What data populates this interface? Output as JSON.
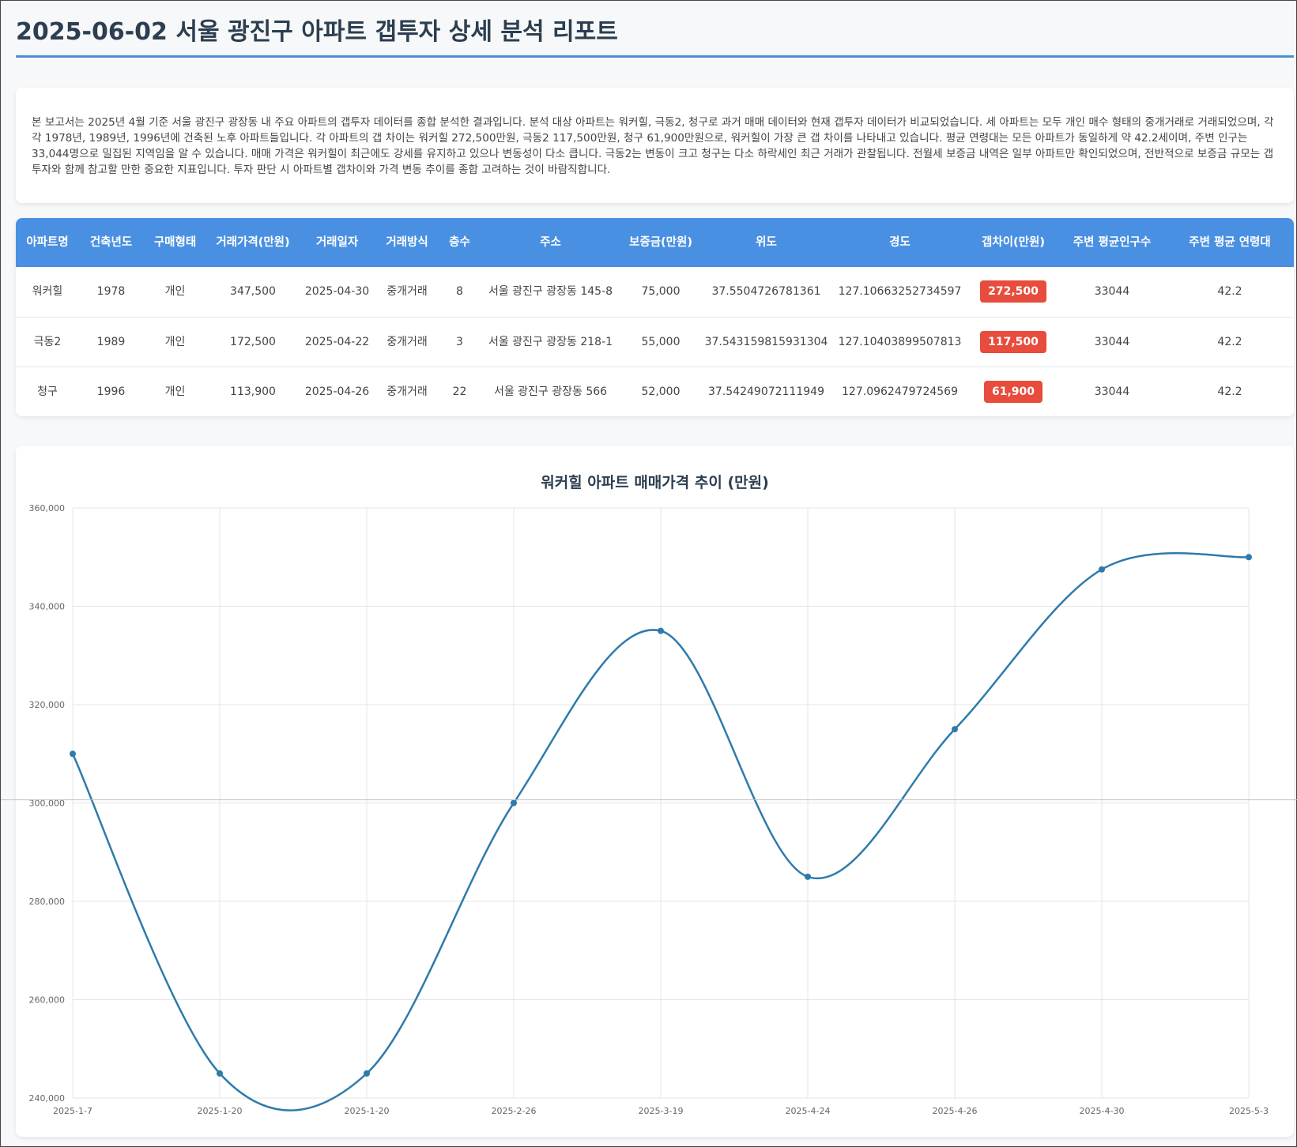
{
  "page": {
    "title": "2025-06-02 서울 광진구 아파트 갭투자 상세 분석 리포트"
  },
  "summary": {
    "text": "본 보고서는 2025년 4월 기준 서울 광진구 광장동 내 주요 아파트의 갭투자 데이터를 종합 분석한 결과입니다. 분석 대상 아파트는 워커힐, 극동2, 청구로 과거 매매 데이터와 현재 갭투자 데이터가 비교되었습니다. 세 아파트는 모두 개인 매수 형태의 중개거래로 거래되었으며, 각각 1978년, 1989년, 1996년에 건축된 노후 아파트들입니다. 각 아파트의 갭 차이는 워커힐 272,500만원, 극동2 117,500만원, 청구 61,900만원으로, 워커힐이 가장 큰 갭 차이를 나타내고 있습니다. 평균 연령대는 모든 아파트가 동일하게 약 42.2세이며, 주변 인구는 33,044명으로 밀집된 지역임을 알 수 있습니다. 매매 가격은 워커힐이 최근에도 강세를 유지하고 있으나 변동성이 다소 큽니다. 극동2는 변동이 크고 청구는 다소 하락세인 최근 거래가 관찰됩니다. 전월세 보증금 내역은 일부 아파트만 확인되었으며, 전반적으로 보증금 규모는 갭투자와 함께 참고할 만한 중요한 지표입니다. 투자 판단 시 아파트별 갭차이와 가격 변동 추이를 종합 고려하는 것이 바람직합니다."
  },
  "table": {
    "headers": [
      "아파트명",
      "건축년도",
      "구매형태",
      "거래가격(만원)",
      "거래일자",
      "거래방식",
      "층수",
      "주소",
      "보증금(만원)",
      "위도",
      "경도",
      "갭차이(만원)",
      "주변 평균인구수",
      "주변 평균 연령대"
    ],
    "rows": [
      [
        "워커힐",
        "1978",
        "개인",
        "347,500",
        "2025-04-30",
        "중개거래",
        "8",
        "서울 광진구 광장동 145-8",
        "75,000",
        "37.5504726781361",
        "127.10663252734597",
        "272,500",
        "33044",
        "42.2"
      ],
      [
        "극동2",
        "1989",
        "개인",
        "172,500",
        "2025-04-22",
        "중개거래",
        "3",
        "서울 광진구 광장동 218-1",
        "55,000",
        "37.543159815931304",
        "127.10403899507813",
        "117,500",
        "33044",
        "42.2"
      ],
      [
        "청구",
        "1996",
        "개인",
        "113,900",
        "2025-04-26",
        "중개거래",
        "22",
        "서울 광진구 광장동 566",
        "52,000",
        "37.54249072111949",
        "127.0962479724569",
        "61,900",
        "33044",
        "42.2"
      ]
    ],
    "badge_color": "#e74c3c",
    "header_color": "#4a90e2"
  },
  "chart_data": {
    "type": "line",
    "title": "워커힐 아파트 매매가격 추이 (만원)",
    "categories": [
      "2025-1-7",
      "2025-1-20",
      "2025-1-20",
      "2025-2-26",
      "2025-3-19",
      "2025-4-24",
      "2025-4-26",
      "2025-4-30",
      "2025-5-3"
    ],
    "series": [
      {
        "values": [
          310000,
          245000,
          245000,
          300000,
          335000,
          285000,
          315000,
          347500,
          350000
        ]
      }
    ],
    "ylim": [
      240000,
      360000
    ],
    "yticks": [
      "360,000",
      "340,000",
      "320,000",
      "300,000",
      "280,000",
      "260,000",
      "240,000"
    ],
    "grid": true,
    "line_color": "#2e7bab"
  }
}
